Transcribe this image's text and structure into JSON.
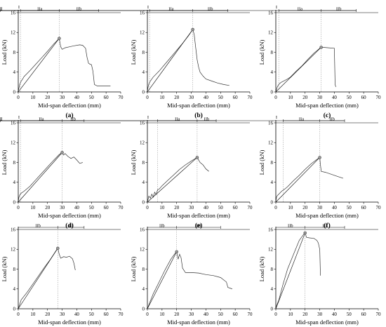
{
  "chart_data": [
    {
      "id": "a",
      "type": "line",
      "label": "(a)",
      "xlabel": "Mid-span deflection (mm)",
      "ylabel": "Load (kN)",
      "xlim": [
        0,
        70
      ],
      "ylim": [
        0,
        16
      ],
      "xticks": [
        0,
        10,
        20,
        30,
        40,
        50,
        60,
        70
      ],
      "yticks": [
        0,
        4,
        8,
        12,
        16
      ],
      "stages": [
        "I",
        "IIa",
        "IIb",
        "III"
      ],
      "stage_bounds": [
        0,
        1.5,
        28,
        55
      ],
      "peak": [
        28,
        10.8
      ],
      "series": [
        {
          "x": [
            0,
            0.5,
            1,
            2,
            3,
            4,
            6,
            8,
            12,
            16,
            20,
            24,
            26,
            28,
            29,
            30,
            32,
            35,
            38,
            42,
            44,
            46,
            47,
            48,
            49,
            50,
            51,
            52,
            54,
            58,
            63
          ],
          "y": [
            0,
            0.8,
            1.5,
            2.2,
            2.6,
            3.1,
            3.7,
            4.3,
            5.6,
            6.9,
            8.2,
            9.6,
            10.2,
            10.8,
            9.1,
            8.6,
            8.9,
            9.1,
            9.3,
            9.5,
            9.4,
            8.8,
            7,
            5.8,
            5.6,
            5.5,
            4.2,
            1.5,
            1.2,
            1.2,
            1.2
          ]
        }
      ]
    },
    {
      "id": "b",
      "type": "line",
      "label": "(b)",
      "xlabel": "Mid-span deflection (mm)",
      "ylabel": "Load (kN)",
      "xlim": [
        0,
        70
      ],
      "ylim": [
        0,
        16
      ],
      "xticks": [
        0,
        10,
        20,
        30,
        40,
        50,
        60,
        70
      ],
      "yticks": [
        0,
        4,
        8,
        12,
        16
      ],
      "stages": [
        "I",
        "IIa",
        "IIb",
        "III"
      ],
      "stage_bounds": [
        0,
        1.5,
        31,
        55
      ],
      "peak": [
        31,
        12.6
      ],
      "series": [
        {
          "x": [
            0,
            0.5,
            1,
            2,
            4,
            8,
            12,
            16,
            20,
            24,
            28,
            31,
            32,
            33,
            34,
            35,
            36,
            38,
            40,
            44,
            48,
            52,
            56
          ],
          "y": [
            0,
            1,
            1.6,
            2.2,
            3,
            4.2,
            5.6,
            7,
            8.4,
            9.8,
            11.3,
            12.6,
            11.6,
            9,
            6.5,
            5,
            4,
            3.2,
            2.6,
            2.2,
            1.8,
            1.5,
            1.3
          ]
        }
      ]
    },
    {
      "id": "c",
      "type": "line",
      "label": "(c)",
      "xlabel": "Mid-span deflection (mm)",
      "ylabel": "Load (kN)",
      "xlim": [
        0,
        70
      ],
      "ylim": [
        0,
        16
      ],
      "xticks": [
        0,
        10,
        20,
        30,
        40,
        50,
        60,
        70
      ],
      "yticks": [
        0,
        4,
        8,
        12,
        16
      ],
      "stages": [
        "I",
        "IIa",
        "IIb",
        "III"
      ],
      "stage_bounds": [
        0,
        2,
        31,
        55
      ],
      "peak": [
        31,
        9
      ],
      "series": [
        {
          "x": [
            0,
            1,
            2,
            3,
            4,
            6,
            8,
            10,
            14,
            18,
            22,
            26,
            28,
            30,
            31,
            32,
            36,
            40,
            40.5,
            41
          ],
          "y": [
            0,
            1,
            1.5,
            1.8,
            2,
            2.3,
            2.6,
            3,
            4.2,
            5.3,
            6.6,
            7.8,
            8.3,
            8.8,
            9,
            9,
            8.9,
            8.8,
            1.5,
            1
          ]
        }
      ]
    },
    {
      "id": "d",
      "type": "line",
      "label": "(d)",
      "xlabel": "Mid-span deflection (mm)",
      "ylabel": "Load (kN)",
      "xlim": [
        0,
        70
      ],
      "ylim": [
        0,
        16
      ],
      "xticks": [
        0,
        10,
        20,
        30,
        40,
        50,
        60,
        70
      ],
      "yticks": [
        0,
        4,
        8,
        12,
        16
      ],
      "stages": [
        "I",
        "IIa",
        "IIb",
        "III"
      ],
      "stage_bounds": [
        0,
        1.5,
        30,
        45
      ],
      "peak": [
        30,
        10
      ],
      "series": [
        {
          "x": [
            0,
            0.5,
            1,
            2,
            4,
            8,
            12,
            16,
            20,
            24,
            28,
            30,
            31,
            32,
            34,
            36,
            38,
            40,
            42,
            44
          ],
          "y": [
            0,
            1,
            1.4,
            1.8,
            2.2,
            3.2,
            4.5,
            5.8,
            7.1,
            8.4,
            9.6,
            10,
            9.5,
            9.8,
            9.2,
            8.8,
            9.1,
            8.5,
            7.8,
            8
          ]
        }
      ]
    },
    {
      "id": "e",
      "type": "line",
      "label": "(e)",
      "xlabel": "Mid-span deflection (mm)",
      "ylabel": "Load (kN)",
      "xlim": [
        0,
        70
      ],
      "ylim": [
        0,
        16
      ],
      "xticks": [
        0,
        10,
        20,
        30,
        40,
        50,
        60,
        70
      ],
      "yticks": [
        0,
        4,
        8,
        12,
        16
      ],
      "stages": [
        "I",
        "IIa",
        "IIb",
        "III"
      ],
      "stage_bounds": [
        0,
        7,
        34,
        47
      ],
      "peak": [
        34,
        9
      ],
      "series": [
        {
          "x": [
            0,
            1,
            2,
            3,
            4,
            5,
            6,
            7,
            8,
            10,
            14,
            18,
            22,
            26,
            30,
            34,
            36,
            38,
            40,
            42
          ],
          "y": [
            0,
            1.2,
            0.8,
            1.6,
            1,
            2,
            1.5,
            2.5,
            2.6,
            3.3,
            4.4,
            5.5,
            6.6,
            7.5,
            8.3,
            9,
            8,
            7.5,
            6.7,
            6.2
          ]
        }
      ]
    },
    {
      "id": "f",
      "type": "line",
      "label": "(f)",
      "xlabel": "Mid-span deflection (mm)",
      "ylabel": "Load (kN)",
      "xlim": [
        0,
        70
      ],
      "ylim": [
        0,
        16
      ],
      "xticks": [
        0,
        10,
        20,
        30,
        40,
        50,
        60,
        70
      ],
      "yticks": [
        0,
        4,
        8,
        12,
        16
      ],
      "stages": [
        "I",
        "IIa",
        "IIb",
        "III"
      ],
      "stage_bounds": [
        0,
        5,
        30,
        47
      ],
      "peak": [
        30,
        9
      ],
      "series": [
        {
          "x": [
            0,
            0.5,
            1,
            2,
            3,
            4,
            6,
            8,
            12,
            16,
            20,
            24,
            28,
            30,
            30.5,
            31,
            34,
            38,
            42,
            46
          ],
          "y": [
            0,
            1,
            1.3,
            1.6,
            1.9,
            2.2,
            2.6,
            3.1,
            4.3,
            5.4,
            6.6,
            7.7,
            8.6,
            9,
            7.5,
            6.2,
            6,
            5.6,
            5.2,
            4.8
          ]
        }
      ]
    },
    {
      "id": "g",
      "type": "line",
      "label": "(g)",
      "xlabel": "Mid-span deflection (mm)",
      "ylabel": "Load (kN)",
      "xlim": [
        0,
        70
      ],
      "ylim": [
        0,
        16
      ],
      "xticks": [
        0,
        10,
        20,
        30,
        40,
        50,
        60,
        70
      ],
      "yticks": [
        0,
        4,
        8,
        12,
        16
      ],
      "stages": [
        "IIb",
        "III"
      ],
      "stage_bounds": [
        0,
        27,
        45
      ],
      "peak": [
        27,
        12.2
      ],
      "series": [
        {
          "x": [
            0,
            2,
            6,
            10,
            14,
            18,
            22,
            26,
            27,
            28,
            29,
            31,
            33,
            35,
            37,
            38,
            39
          ],
          "y": [
            0,
            1.8,
            3.3,
            5,
            6.7,
            8.4,
            10,
            11.8,
            12.2,
            11,
            10.2,
            10.5,
            10.4,
            10.6,
            10.1,
            9.2,
            7.8
          ]
        }
      ]
    },
    {
      "id": "h",
      "type": "line",
      "label": "(h)",
      "xlabel": "Mid-span deflection (mm)",
      "ylabel": "Load (kN)",
      "xlim": [
        0,
        70
      ],
      "ylim": [
        0,
        16
      ],
      "xticks": [
        0,
        10,
        20,
        30,
        40,
        50,
        60,
        70
      ],
      "yticks": [
        0,
        4,
        8,
        12,
        16
      ],
      "stages": [
        "IIb",
        "III"
      ],
      "stage_bounds": [
        0,
        20,
        50
      ],
      "peak": [
        20,
        11.5
      ],
      "series": [
        {
          "x": [
            0,
            1,
            4,
            8,
            12,
            16,
            19,
            20,
            21,
            22,
            23,
            24,
            26,
            30,
            35,
            40,
            45,
            50,
            54,
            55,
            57,
            58
          ],
          "y": [
            0,
            0.8,
            3,
            5.4,
            7.8,
            10,
            11.2,
            11.5,
            10,
            11,
            10.3,
            8.2,
            7.3,
            7.3,
            7.2,
            6.9,
            6.7,
            6.3,
            5.4,
            4.3,
            4.1,
            4
          ]
        }
      ]
    },
    {
      "id": "i",
      "type": "line",
      "label": "(i)",
      "xlabel": "Mid-span deflection (mm)",
      "ylabel": "Load (kN)",
      "xlim": [
        0,
        70
      ],
      "ylim": [
        0,
        16
      ],
      "xticks": [
        0,
        10,
        20,
        30,
        40,
        50,
        60,
        70
      ],
      "yticks": [
        0,
        4,
        8,
        12,
        16
      ],
      "stages": [
        "IIb",
        "III"
      ],
      "stage_bounds": [
        0,
        20,
        47
      ],
      "peak": [
        20,
        15.3
      ],
      "series": [
        {
          "x": [
            0,
            1,
            2,
            5,
            8,
            12,
            16,
            19,
            20,
            21,
            23,
            26,
            28,
            29,
            30,
            30.5
          ],
          "y": [
            0,
            1,
            1.7,
            5,
            8,
            10.9,
            13.8,
            15,
            15.3,
            14.4,
            14.3,
            14.2,
            13.8,
            13.3,
            12,
            6.7
          ]
        }
      ]
    }
  ]
}
